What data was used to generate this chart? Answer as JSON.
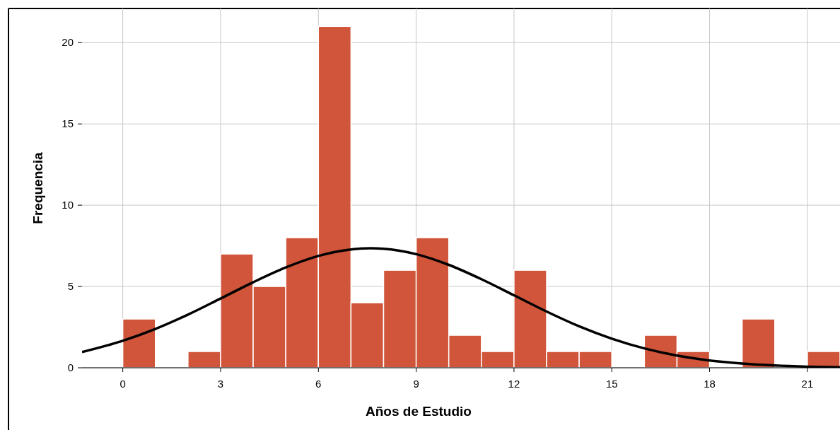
{
  "chart_data": {
    "type": "histogram",
    "xlabel": "Años de Estudio",
    "ylabel": "Frequencia",
    "bins": [
      0,
      1,
      2,
      3,
      4,
      5,
      6,
      7,
      8,
      9,
      10,
      11,
      12,
      13,
      14,
      15,
      16,
      17,
      18,
      19,
      20,
      21,
      22
    ],
    "xlim": [
      -1.25,
      22
    ],
    "ylim": [
      0,
      22.1
    ],
    "xticks": [
      0,
      3,
      6,
      9,
      12,
      15,
      18,
      21
    ],
    "yticks": [
      0,
      5,
      10,
      15,
      20
    ],
    "grid": true,
    "series": [
      {
        "color": "#d0553a",
        "values": [
          3,
          0,
          1,
          7,
          5,
          8,
          21,
          4,
          6,
          8,
          2,
          1,
          6,
          1,
          1,
          0,
          2,
          1,
          0,
          3,
          0,
          1
        ]
      },
      {
        "type": "line",
        "color": "#000000",
        "x": [
          -1.25,
          0,
          1,
          2,
          3,
          4,
          5,
          6,
          7,
          7.6,
          8,
          9,
          10,
          11,
          12,
          13,
          14,
          15,
          16,
          17,
          18,
          19,
          20,
          21,
          22
        ],
        "values": [
          0.97,
          1.66,
          2.39,
          3.27,
          4.26,
          5.26,
          6.17,
          6.88,
          7.28,
          7.35,
          7.32,
          6.99,
          6.33,
          5.45,
          4.46,
          3.46,
          2.55,
          1.79,
          1.19,
          0.75,
          0.45,
          0.26,
          0.14,
          0.07,
          0.03
        ]
      }
    ]
  }
}
